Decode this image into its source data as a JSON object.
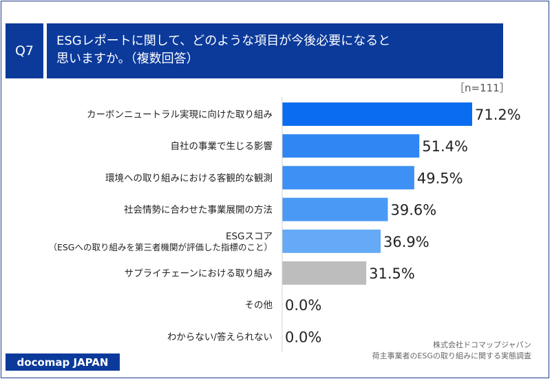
{
  "header": {
    "question_no": "Q7",
    "question_line1": "ESGレポートに関して、どのような項目が今後必要になると",
    "question_line2": "思いますか。（複数回答）"
  },
  "sample_size": "［n=111］",
  "source": {
    "line1": "株式会社ドコマップジャパン",
    "line2": "荷主事業者のESGの取り組みに関する実態調査"
  },
  "brand": "docomap JAPAN",
  "chart_data": {
    "type": "bar",
    "orientation": "horizontal",
    "categories": [
      "カーボンニュートラル実現に向けた取り組み",
      "自社の事業で生じる影響",
      "環境への取り組みにおける客観的な観測",
      "社会情勢に合わせた事業展開の方法",
      "ESGスコア\n（ESGへの取り組みを第三者機関が評価した指標のこと）",
      "サプライチェーンにおける取り組み",
      "その他",
      "わからない/答えられない"
    ],
    "values": [
      71.2,
      51.4,
      49.5,
      39.6,
      36.9,
      31.5,
      0.0,
      0.0
    ],
    "value_labels": [
      "71.2%",
      "51.4%",
      "49.5%",
      "39.6%",
      "36.9%",
      "31.5%",
      "0.0%",
      "0.0%"
    ],
    "colors": [
      "#0a6cf0",
      "#3087f3",
      "#3d90f4",
      "#4a99f5",
      "#64aaf6",
      "#bdbdbd",
      "#bdbdbd",
      "#bdbdbd"
    ],
    "xlim": [
      0,
      100
    ],
    "grid": false,
    "legend": false
  }
}
